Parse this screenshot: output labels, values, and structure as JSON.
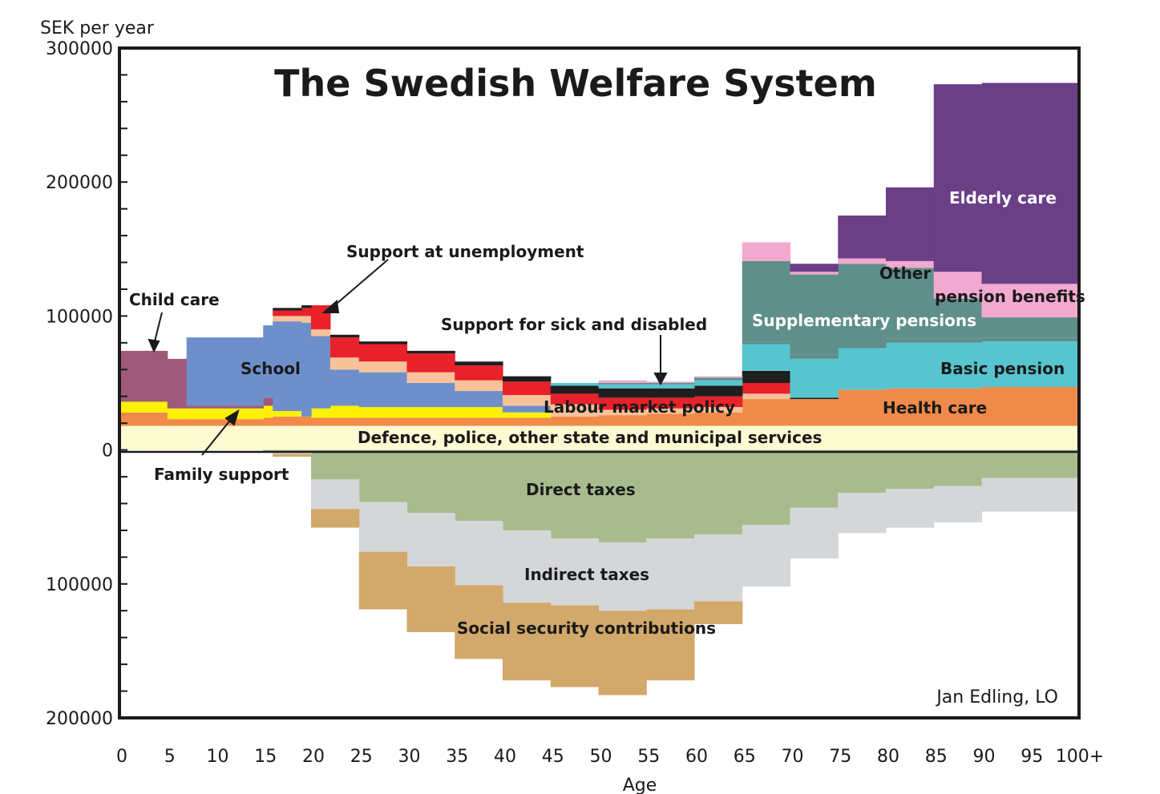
{
  "chart_data": {
    "type": "area",
    "title": "The Swedish Welfare System",
    "ylabel": "SEK per year",
    "xlabel": "Age",
    "credit": "Jan Edling, LO",
    "ylim": [
      -200000,
      300000
    ],
    "xlim": [
      0,
      100
    ],
    "y_tick_values": [
      300000,
      200000,
      100000,
      0,
      -100000,
      -200000
    ],
    "y_tick_labels": [
      "300000",
      "200000",
      "100000",
      "0",
      "100000",
      "200000"
    ],
    "x_tick_values": [
      0,
      5,
      10,
      15,
      20,
      25,
      30,
      35,
      40,
      45,
      50,
      55,
      60,
      65,
      70,
      75,
      80,
      85,
      90,
      95,
      100
    ],
    "x_tick_labels": [
      "0",
      "5",
      "10",
      "15",
      "20",
      "25",
      "30",
      "35",
      "40",
      "45",
      "50",
      "55",
      "60",
      "65",
      "70",
      "75",
      "80",
      "85",
      "90",
      "95",
      "100+"
    ],
    "grid": false,
    "colors": {
      "defence": "#fdfbd2",
      "health_care": "#ef8a4a",
      "family_support": "#fff200",
      "child_care": "#9e5a7a",
      "school": "#6f8fcb",
      "peach": "#f7c29a",
      "unemployment": "#e8212b",
      "labour_market": "#f7c29a",
      "sick_disabled": "#1e1e1e",
      "basic_pension": "#56c5d0",
      "supplementary_pensions": "#5f8f8a",
      "other_pension": "#f2a9cf",
      "elderly_care": "#6b3f86",
      "direct_taxes": "#a8bb8d",
      "indirect_taxes": "#d5d6d8",
      "social_security": "#d2a96b"
    },
    "bins": [
      [
        0,
        5
      ],
      [
        5,
        7
      ],
      [
        7,
        15
      ],
      [
        15,
        16
      ],
      [
        16,
        19
      ],
      [
        19,
        20
      ],
      [
        20,
        22
      ],
      [
        22,
        25
      ],
      [
        25,
        30
      ],
      [
        30,
        35
      ],
      [
        35,
        40
      ],
      [
        40,
        45
      ],
      [
        45,
        50
      ],
      [
        50,
        55
      ],
      [
        55,
        60
      ],
      [
        60,
        65
      ],
      [
        65,
        70
      ],
      [
        70,
        75
      ],
      [
        75,
        80
      ],
      [
        80,
        85
      ],
      [
        85,
        90
      ],
      [
        90,
        100
      ]
    ],
    "series": [
      {
        "name": "Defence, police, other state and municipal services",
        "color_key": "defence",
        "values": [
          18000,
          18000,
          18000,
          18000,
          18000,
          18000,
          18000,
          18000,
          18000,
          18000,
          18000,
          18000,
          18000,
          18000,
          18000,
          18000,
          18000,
          18000,
          18000,
          18000,
          18000,
          18000
        ]
      },
      {
        "name": "Health care",
        "color_key": "health_care",
        "values": [
          10000,
          5000,
          5000,
          6000,
          7000,
          7000,
          6000,
          6000,
          6000,
          6000,
          6000,
          6000,
          7000,
          8000,
          9000,
          10000,
          20000,
          20000,
          27000,
          28000,
          28000,
          29000
        ]
      },
      {
        "name": "Family support",
        "color_key": "family_support",
        "values": [
          8000,
          8000,
          8000,
          9000,
          4000,
          0,
          7000,
          9000,
          8000,
          8000,
          8000,
          4000,
          0,
          0,
          0,
          0,
          0,
          0,
          0,
          0,
          0,
          0
        ]
      },
      {
        "name": "Child care",
        "color_key": "child_care",
        "values": [
          38000,
          37000,
          2000,
          6000,
          0,
          0,
          0,
          0,
          0,
          0,
          0,
          0,
          0,
          0,
          0,
          0,
          0,
          0,
          0,
          0,
          0,
          0
        ]
      },
      {
        "name": "School",
        "color_key": "school",
        "values": [
          0,
          0,
          51000,
          54000,
          67000,
          70000,
          54000,
          27000,
          26000,
          18000,
          12000,
          5000,
          0,
          0,
          0,
          0,
          0,
          0,
          0,
          0,
          0,
          0
        ]
      },
      {
        "name": "",
        "color_key": "peach",
        "values": [
          0,
          0,
          0,
          0,
          4000,
          5000,
          5000,
          9000,
          8000,
          8000,
          8000,
          8000,
          0,
          0,
          0,
          0,
          0,
          0,
          0,
          0,
          0,
          0
        ]
      },
      {
        "name": "Labour market policy",
        "color_key": "labour_market",
        "values": [
          0,
          0,
          0,
          0,
          0,
          0,
          0,
          0,
          0,
          0,
          0,
          0,
          9000,
          4000,
          4000,
          4000,
          4000,
          0,
          0,
          0,
          0,
          0
        ]
      },
      {
        "name": "Support at unemployment",
        "color_key": "unemployment",
        "values": [
          0,
          0,
          0,
          0,
          4000,
          6000,
          18000,
          15000,
          13000,
          14000,
          11000,
          10000,
          8000,
          9000,
          8000,
          8000,
          8000,
          0,
          0,
          0,
          0,
          0
        ]
      },
      {
        "name": "Support for sick and disabled",
        "color_key": "sick_disabled",
        "values": [
          0,
          0,
          0,
          0,
          2000,
          2000,
          0,
          2000,
          2000,
          2000,
          3000,
          4000,
          6000,
          7000,
          7000,
          8000,
          9000,
          1000,
          0,
          0,
          0,
          0
        ]
      },
      {
        "name": "Basic pension",
        "color_key": "basic_pension",
        "values": [
          0,
          0,
          0,
          0,
          0,
          0,
          0,
          0,
          0,
          0,
          0,
          0,
          2000,
          3000,
          3000,
          4000,
          20000,
          29000,
          31000,
          34000,
          34000,
          34000
        ]
      },
      {
        "name": "Supplementary pensions",
        "color_key": "supplementary_pensions",
        "values": [
          0,
          0,
          0,
          0,
          0,
          0,
          0,
          0,
          0,
          0,
          0,
          0,
          0,
          0,
          0,
          0,
          2000,
          3000,
          3000,
          3000,
          3000,
          3000
        ]
      },
      {
        "name": "",
        "color_key": "supplementary_pensions",
        "values": [
          0,
          0,
          0,
          0,
          0,
          0,
          0,
          0,
          0,
          0,
          0,
          0,
          0,
          1000,
          1000,
          2000,
          60000,
          60000,
          60000,
          53000,
          30000,
          15000
        ]
      },
      {
        "name": "Other pension benefits",
        "color_key": "other_pension",
        "values": [
          0,
          0,
          0,
          0,
          0,
          0,
          0,
          0,
          0,
          0,
          0,
          0,
          0,
          2000,
          1000,
          1000,
          14000,
          2000,
          4000,
          5000,
          20000,
          25000
        ]
      },
      {
        "name": "Elderly care",
        "color_key": "elderly_care",
        "values": [
          0,
          0,
          0,
          0,
          0,
          0,
          0,
          0,
          0,
          0,
          0,
          0,
          0,
          0,
          0,
          0,
          0,
          6000,
          32000,
          55000,
          140000,
          150000
        ]
      },
      {
        "name": "Direct taxes",
        "color_key": "direct_taxes",
        "values": [
          0,
          0,
          0,
          -1000,
          -2000,
          -2000,
          -22000,
          -22000,
          -39000,
          -47000,
          -53000,
          -60000,
          -66000,
          -69000,
          -66000,
          -63000,
          -56000,
          -43000,
          -32000,
          -29000,
          -27000,
          -21000
        ]
      },
      {
        "name": "Indirect taxes",
        "color_key": "indirect_taxes",
        "values": [
          0,
          0,
          0,
          0,
          -1000,
          -1000,
          -22000,
          -22000,
          -37000,
          -40000,
          -48000,
          -54000,
          -50000,
          -51000,
          -53000,
          -50000,
          -46000,
          -38000,
          -30000,
          -29000,
          -27000,
          -25000
        ]
      },
      {
        "name": "Social security contributions",
        "color_key": "social_security",
        "values": [
          0,
          0,
          0,
          0,
          -2000,
          -2000,
          -14000,
          -14000,
          -43000,
          -49000,
          -55000,
          -58000,
          -61000,
          -63000,
          -53000,
          -17000,
          0,
          0,
          0,
          0,
          0,
          0
        ]
      }
    ],
    "annotations": [
      "Child care",
      "School",
      "Family support",
      "Support at unemployment",
      "Support for sick and disabled",
      "Labour market policy",
      "Health care",
      "Defence, police, other state and municipal services",
      "Direct taxes",
      "Indirect taxes",
      "Social security contributions",
      "Supplementary pensions",
      "Basic pension",
      "Other",
      "pension benefits",
      "Elderly care"
    ]
  }
}
